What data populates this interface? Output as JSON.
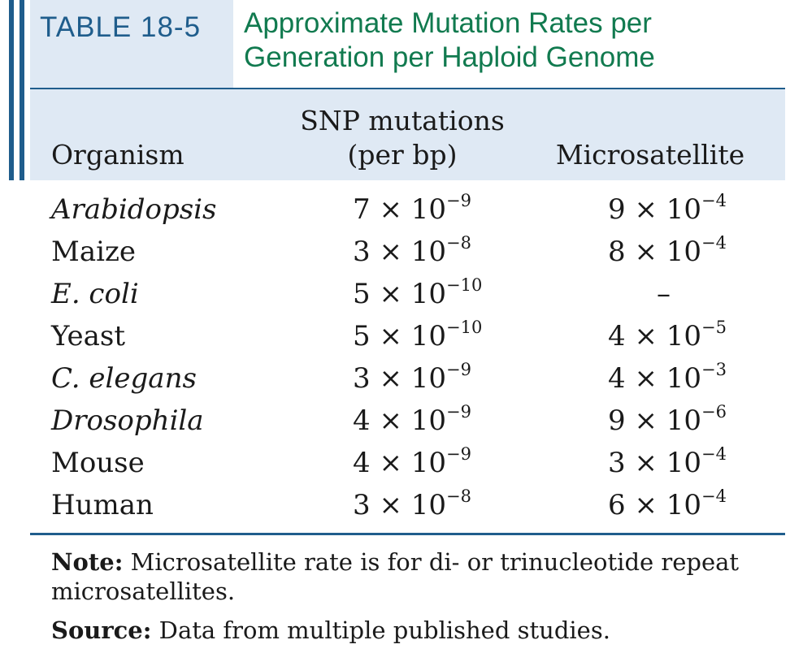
{
  "table": {
    "tag": "TABLE 18-5",
    "title_line1": "Approximate Mutation Rates per",
    "title_line2": "Generation per Haploid Genome",
    "headers": {
      "organism": "Organism",
      "snp_line1": "SNP mutations",
      "snp_line2": "(per bp)",
      "microsatellite": "Microsatellite"
    },
    "rows": [
      {
        "organism": "Arabidopsis",
        "italic": true,
        "snp_base": "7 × 10",
        "snp_exp": "−9",
        "mic_base": "9 × 10",
        "mic_exp": "−4"
      },
      {
        "organism": "Maize",
        "italic": false,
        "snp_base": "3 × 10",
        "snp_exp": "−8",
        "mic_base": "8 × 10",
        "mic_exp": "−4"
      },
      {
        "organism": "E. coli",
        "italic": true,
        "snp_base": "5 × 10",
        "snp_exp": "−10",
        "mic_base": "–",
        "mic_exp": ""
      },
      {
        "organism": "Yeast",
        "italic": false,
        "snp_base": "5 × 10",
        "snp_exp": "−10",
        "mic_base": "4 × 10",
        "mic_exp": "−5"
      },
      {
        "organism": "C. elegans",
        "italic": true,
        "snp_base": "3 × 10",
        "snp_exp": "−9",
        "mic_base": "4 × 10",
        "mic_exp": "−3"
      },
      {
        "organism": "Drosophila",
        "italic": true,
        "snp_base": "4 × 10",
        "snp_exp": "−9",
        "mic_base": "9 × 10",
        "mic_exp": "−6"
      },
      {
        "organism": "Mouse",
        "italic": false,
        "snp_base": "4 × 10",
        "snp_exp": "−9",
        "mic_base": "3 × 10",
        "mic_exp": "−4"
      },
      {
        "organism": "Human",
        "italic": false,
        "snp_base": "3 × 10",
        "snp_exp": "−8",
        "mic_base": "6 × 10",
        "mic_exp": "−4"
      }
    ],
    "note_label": "Note:",
    "note_line1": " Microsatellite rate is for di- or trinucleotide repeat",
    "note_line2": "microsatellites.",
    "source_label": "Source:",
    "source_text": " Data from multiple published studies.",
    "colors": {
      "accent_blue": "#1f5d8c",
      "title_green": "#117a4f",
      "band": "#dfe9f4"
    }
  }
}
